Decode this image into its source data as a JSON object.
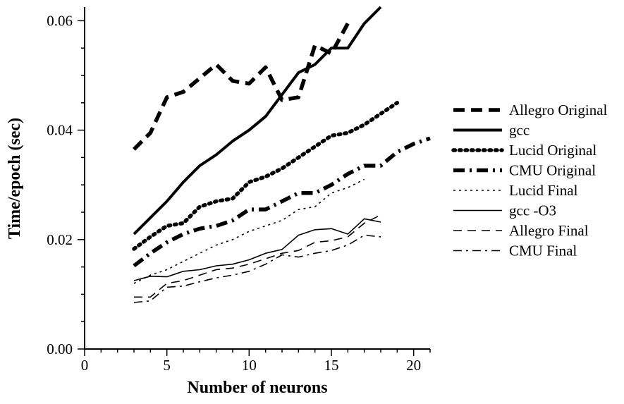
{
  "chart_data": {
    "type": "line",
    "title": "",
    "xlabel": "Number of neurons",
    "ylabel": "Time/epoch (sec)",
    "xlim": [
      0,
      21
    ],
    "ylim": [
      0,
      0.0625
    ],
    "xticks": [
      0,
      5,
      10,
      15,
      20
    ],
    "xtick_labels": [
      "0",
      "5",
      "10",
      "15",
      "20"
    ],
    "yticks": [
      0,
      0.02,
      0.04,
      0.06
    ],
    "ytick_labels": [
      "0.00",
      "0.02",
      "0.04",
      "0.06"
    ],
    "grid": false,
    "legend_position": "right",
    "series": [
      {
        "name": "Allegro Original",
        "style": "thick-dashed",
        "x": [
          3,
          4,
          5,
          6,
          7,
          8,
          9,
          10,
          11,
          12,
          13,
          14,
          15,
          16
        ],
        "y": [
          0.0365,
          0.0395,
          0.046,
          0.047,
          0.0495,
          0.052,
          0.049,
          0.0485,
          0.0515,
          0.0455,
          0.046,
          0.0555,
          0.054,
          0.0595
        ]
      },
      {
        "name": "gcc",
        "style": "thick-solid",
        "x": [
          3,
          4,
          5,
          6,
          7,
          8,
          9,
          10,
          11,
          12,
          13,
          14,
          15,
          16,
          17,
          18
        ],
        "y": [
          0.021,
          0.024,
          0.027,
          0.0305,
          0.0335,
          0.0355,
          0.038,
          0.04,
          0.0425,
          0.0465,
          0.0505,
          0.052,
          0.055,
          0.055,
          0.0595,
          0.0625
        ]
      },
      {
        "name": "Lucid Original",
        "style": "thick-dotted",
        "x": [
          3,
          4,
          5,
          6,
          7,
          8,
          9,
          10,
          11,
          12,
          13,
          14,
          15,
          16,
          17,
          18,
          19
        ],
        "y": [
          0.0183,
          0.0205,
          0.0225,
          0.023,
          0.026,
          0.027,
          0.0275,
          0.0305,
          0.0315,
          0.033,
          0.035,
          0.037,
          0.039,
          0.0395,
          0.041,
          0.043,
          0.045
        ]
      },
      {
        "name": "CMU Original",
        "style": "thick-dashdot",
        "x": [
          3,
          4,
          5,
          6,
          7,
          8,
          9,
          10,
          11,
          12,
          13,
          14,
          15,
          16,
          17,
          18,
          19,
          20,
          21
        ],
        "y": [
          0.0152,
          0.0175,
          0.0195,
          0.021,
          0.022,
          0.0225,
          0.0235,
          0.0255,
          0.0255,
          0.027,
          0.0285,
          0.0285,
          0.03,
          0.032,
          0.0335,
          0.0335,
          0.036,
          0.0375,
          0.0385
        ]
      },
      {
        "name": "Lucid Final",
        "style": "thin-dotted",
        "x": [
          3,
          4,
          5,
          6,
          7,
          8,
          9,
          10,
          11,
          12,
          13,
          14,
          15,
          16,
          17
        ],
        "y": [
          0.012,
          0.0135,
          0.0145,
          0.016,
          0.0175,
          0.019,
          0.02,
          0.0215,
          0.0225,
          0.0235,
          0.0255,
          0.026,
          0.0285,
          0.0295,
          0.031
        ]
      },
      {
        "name": "gcc -O3",
        "style": "thin-solid",
        "x": [
          3,
          4,
          5,
          6,
          7,
          8,
          9,
          10,
          11,
          12,
          13,
          14,
          15,
          16,
          17,
          18
        ],
        "y": [
          0.0125,
          0.0133,
          0.0132,
          0.0142,
          0.0145,
          0.0152,
          0.0155,
          0.0163,
          0.0175,
          0.0182,
          0.0208,
          0.0218,
          0.022,
          0.021,
          0.0238,
          0.0232
        ]
      },
      {
        "name": "Allegro Final",
        "style": "thin-dashed",
        "x": [
          3,
          4,
          5,
          6,
          7,
          8,
          9,
          10,
          11,
          12,
          13,
          14,
          15,
          16,
          17,
          18
        ],
        "y": [
          0.0095,
          0.0095,
          0.012,
          0.0125,
          0.0135,
          0.0145,
          0.0148,
          0.0155,
          0.0165,
          0.0175,
          0.018,
          0.0195,
          0.0198,
          0.0205,
          0.023,
          0.0245
        ]
      },
      {
        "name": "CMU Final",
        "style": "thin-dashdot",
        "x": [
          3,
          4,
          5,
          6,
          7,
          8,
          9,
          10,
          11,
          12,
          13,
          14,
          15,
          16,
          17,
          18
        ],
        "y": [
          0.0085,
          0.0088,
          0.0113,
          0.0115,
          0.0123,
          0.013,
          0.0135,
          0.0142,
          0.0155,
          0.0172,
          0.0168,
          0.0175,
          0.018,
          0.019,
          0.0208,
          0.0205
        ]
      }
    ]
  }
}
